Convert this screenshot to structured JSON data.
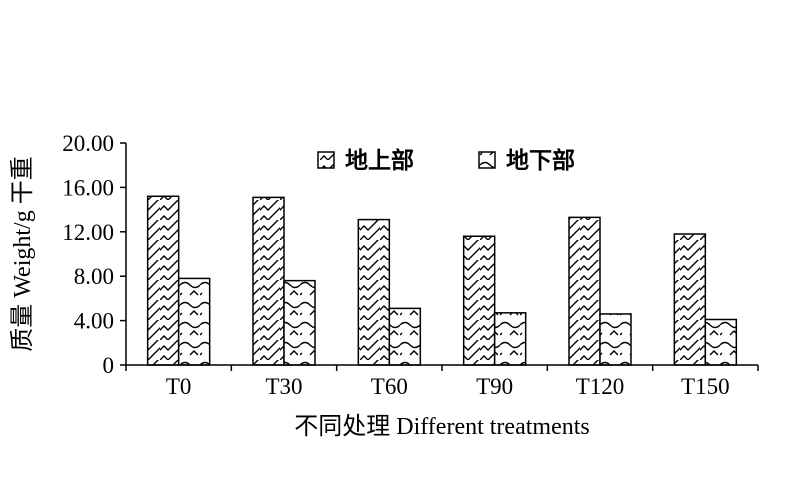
{
  "chart_data": {
    "type": "bar",
    "title": "",
    "xlabel": "不同处理 Different treatments",
    "ylabel": "质量 Weight/g 干重",
    "categories": [
      "T0",
      "T30",
      "T60",
      "T90",
      "T120",
      "T150"
    ],
    "series": [
      {
        "name": "地上部",
        "values": [
          15.2,
          15.1,
          13.1,
          11.6,
          13.3,
          11.8
        ],
        "pattern": "zigzag-diagonal"
      },
      {
        "name": "地下部",
        "values": [
          7.8,
          7.6,
          5.1,
          4.7,
          4.6,
          4.1
        ],
        "pattern": "wave-scallop"
      }
    ],
    "ylim": [
      0,
      20
    ],
    "yticks": [
      "0",
      "4.00",
      "8.00",
      "12.00",
      "16.00",
      "20.00"
    ],
    "grid": false,
    "legend_position": "top-center"
  },
  "colors": {
    "axis": "#000000",
    "fill": "#ffffff"
  }
}
